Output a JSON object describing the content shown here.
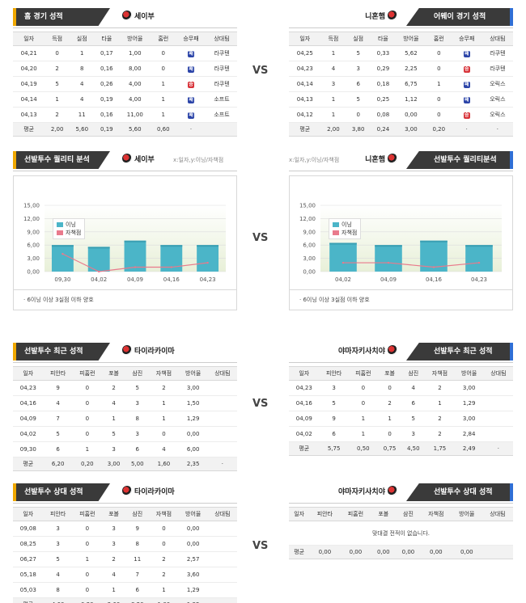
{
  "vs_label": "VS",
  "colors": {
    "bar": "#4bb5c8",
    "line": "#e97a8c",
    "accent_left": "#f0a800",
    "accent_right": "#2f6fd6"
  },
  "sec1": {
    "left": {
      "title": "홈 경기 성적",
      "team": "세이부",
      "headers": [
        "일자",
        "득점",
        "실점",
        "타율",
        "방어율",
        "홈런",
        "승무패",
        "상대팀"
      ],
      "rows": [
        [
          "04,21",
          "0",
          "1",
          "0,17",
          "1,00",
          "0",
          "패",
          "라쿠텐"
        ],
        [
          "04,20",
          "2",
          "8",
          "0,16",
          "8,00",
          "0",
          "패",
          "라쿠텐"
        ],
        [
          "04,19",
          "5",
          "4",
          "0,26",
          "4,00",
          "1",
          "승",
          "라쿠텐"
        ],
        [
          "04,14",
          "1",
          "4",
          "0,19",
          "4,00",
          "1",
          "패",
          "소프트"
        ],
        [
          "04,13",
          "2",
          "11",
          "0,16",
          "11,00",
          "1",
          "패",
          "소프트"
        ]
      ],
      "avg": [
        "평균",
        "2,00",
        "5,60",
        "0,19",
        "5,60",
        "0,60",
        "·",
        ""
      ]
    },
    "right": {
      "title": "어웨이 경기 성적",
      "team": "니혼햄",
      "headers": [
        "일자",
        "득점",
        "실점",
        "타율",
        "방어율",
        "홈런",
        "승무패",
        "상대팀"
      ],
      "rows": [
        [
          "04,25",
          "1",
          "5",
          "0,33",
          "5,62",
          "0",
          "패",
          "라쿠텐"
        ],
        [
          "04,23",
          "4",
          "3",
          "0,29",
          "2,25",
          "0",
          "승",
          "라쿠텐"
        ],
        [
          "04,14",
          "3",
          "6",
          "0,18",
          "6,75",
          "1",
          "패",
          "오릭스"
        ],
        [
          "04,13",
          "1",
          "5",
          "0,25",
          "1,12",
          "0",
          "패",
          "오릭스"
        ],
        [
          "04,12",
          "1",
          "0",
          "0,08",
          "0,00",
          "0",
          "승",
          "오릭스"
        ]
      ],
      "avg": [
        "평균",
        "2,00",
        "3,80",
        "0,24",
        "3,00",
        "0,20",
        "·",
        "·"
      ]
    }
  },
  "sec2": {
    "left": {
      "title": "선발투수 퀄리티 분석",
      "team": "세이부",
      "subtitle": "x:일자,y:이닝/자책점",
      "note": "· 6이닝 이상 3실점 이하 양호",
      "legend": [
        "이닝",
        "자책점"
      ]
    },
    "right": {
      "title": "선발투수 퀄리티분석",
      "team": "니혼햄",
      "subtitle": "x:일자,y:이닝/자책점",
      "note": "· 6이닝 이상 3실점 이하 양호",
      "legend": [
        "이닝",
        "자책점"
      ]
    }
  },
  "chart_data": [
    {
      "type": "bar",
      "yticks": [
        "15,00",
        "12,00",
        "9,00",
        "6,00",
        "3,00",
        "0,00"
      ],
      "ylim": [
        0,
        15
      ],
      "categories": [
        "09,30",
        "04,02",
        "04,09",
        "04,16",
        "04,23"
      ],
      "series": [
        {
          "name": "이닝",
          "type": "bar",
          "values": [
            6,
            5.6,
            7,
            6,
            6
          ]
        },
        {
          "name": "자책점",
          "type": "line",
          "values": [
            4,
            0,
            1,
            1,
            2
          ]
        }
      ]
    },
    {
      "type": "bar",
      "yticks": [
        "15,00",
        "12,00",
        "9,00",
        "6,00",
        "3,00",
        "0,00"
      ],
      "ylim": [
        0,
        15
      ],
      "categories": [
        "04,02",
        "04,09",
        "04,16",
        "04,23"
      ],
      "series": [
        {
          "name": "이닝",
          "type": "bar",
          "values": [
            6.5,
            6,
            7,
            6
          ]
        },
        {
          "name": "자책점",
          "type": "line",
          "values": [
            2,
            2,
            1,
            2
          ]
        }
      ]
    }
  ],
  "sec3": {
    "left": {
      "title": "선발투수 최근 성적",
      "team": "타이라카이마",
      "headers": [
        "일자",
        "피안타",
        "피홈런",
        "포볼",
        "삼진",
        "자책점",
        "방어율",
        "상대팀"
      ],
      "rows": [
        [
          "04,23",
          "9",
          "0",
          "2",
          "5",
          "2",
          "3,00",
          ""
        ],
        [
          "04,16",
          "4",
          "0",
          "4",
          "3",
          "1",
          "1,50",
          ""
        ],
        [
          "04,09",
          "7",
          "0",
          "1",
          "8",
          "1",
          "1,29",
          ""
        ],
        [
          "04,02",
          "5",
          "0",
          "5",
          "3",
          "0",
          "0,00",
          ""
        ],
        [
          "09,30",
          "6",
          "1",
          "3",
          "6",
          "4",
          "6,00",
          ""
        ]
      ],
      "avg": [
        "평균",
        "6,20",
        "0,20",
        "3,00",
        "5,00",
        "1,60",
        "2,35",
        "·"
      ]
    },
    "right": {
      "title": "선발투수 최근 성적",
      "team": "야마자키사치야",
      "headers": [
        "일자",
        "피안타",
        "피홈런",
        "포볼",
        "삼진",
        "자책점",
        "방어율",
        "상대팀"
      ],
      "rows": [
        [
          "04,23",
          "3",
          "0",
          "0",
          "4",
          "2",
          "3,00",
          ""
        ],
        [
          "04,16",
          "5",
          "0",
          "2",
          "6",
          "1",
          "1,29",
          ""
        ],
        [
          "04,09",
          "9",
          "1",
          "1",
          "5",
          "2",
          "3,00",
          ""
        ],
        [
          "04,02",
          "6",
          "1",
          "0",
          "3",
          "2",
          "2,84",
          ""
        ]
      ],
      "avg": [
        "평균",
        "5,75",
        "0,50",
        "0,75",
        "4,50",
        "1,75",
        "2,49",
        "·"
      ]
    }
  },
  "sec4": {
    "left": {
      "title": "선발투수 상대 성적",
      "team": "타이라카이마",
      "headers": [
        "일자",
        "피안타",
        "피홈런",
        "포볼",
        "삼진",
        "자책점",
        "방어율",
        "상대팀"
      ],
      "rows": [
        [
          "09,08",
          "3",
          "0",
          "3",
          "9",
          "0",
          "0,00",
          ""
        ],
        [
          "08,25",
          "3",
          "0",
          "3",
          "8",
          "0",
          "0,00",
          ""
        ],
        [
          "06,27",
          "5",
          "1",
          "2",
          "11",
          "2",
          "2,57",
          ""
        ],
        [
          "05,18",
          "4",
          "0",
          "4",
          "7",
          "2",
          "3,60",
          ""
        ],
        [
          "05,03",
          "8",
          "0",
          "1",
          "6",
          "1",
          "1,29",
          ""
        ]
      ],
      "avg": [
        "평균",
        "4,60",
        "0,20",
        "2,60",
        "8,20",
        "1,00",
        "1,32",
        "·"
      ]
    },
    "right": {
      "title": "선발투수 상대 성적",
      "team": "야마자키사치야",
      "headers": [
        "일자",
        "피안타",
        "피홈런",
        "포볼",
        "삼진",
        "자책점",
        "방어율",
        "상대팀"
      ],
      "empty_msg": "맞대결 전적이 없습니다.",
      "avg": [
        "평균",
        "0,00",
        "0,00",
        "0,00",
        "0,00",
        "0,00",
        "0,00",
        ""
      ]
    }
  }
}
